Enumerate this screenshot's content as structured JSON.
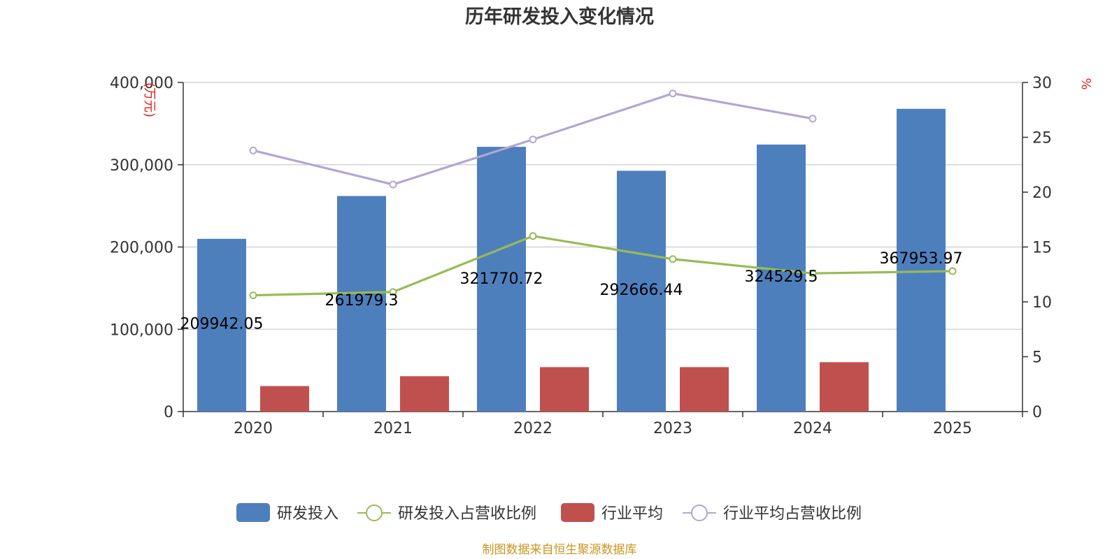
{
  "chart_data": {
    "type": "bar",
    "title": "历年研发投入变化情况",
    "categories": [
      "2020",
      "2021",
      "2022",
      "2023",
      "2024",
      "2025"
    ],
    "y_left": {
      "unit": "(万元)",
      "min": 0,
      "max": 400000,
      "ticks": [
        0,
        100000,
        200000,
        300000,
        400000
      ],
      "tick_labels": [
        "0",
        "100,000",
        "200,000",
        "300,000",
        "400,000"
      ]
    },
    "y_right": {
      "unit": "%",
      "min": 0,
      "max": 30,
      "ticks": [
        0,
        5,
        10,
        15,
        20,
        25,
        30
      ],
      "tick_labels": [
        "0",
        "5",
        "10",
        "15",
        "20",
        "25",
        "30"
      ]
    },
    "grid": true,
    "legend_position": "bottom-center",
    "series": [
      {
        "name": "研发投入",
        "type": "bar",
        "axis": "left",
        "color": "#4e7fbd",
        "values": [
          209942.05,
          261979.3,
          321770.72,
          292666.44,
          324529.5,
          367953.97
        ],
        "data_labels": [
          "209942.05",
          "261979.3",
          "321770.72",
          "292666.44",
          "324529.5",
          "367953.97"
        ]
      },
      {
        "name": "研发投入占营收比例",
        "type": "line",
        "axis": "right",
        "color": "#98bb56",
        "values": [
          10.6,
          10.9,
          16.0,
          13.9,
          12.6,
          12.8
        ]
      },
      {
        "name": "行业平均",
        "type": "bar",
        "axis": "left",
        "color": "#c0504d",
        "values": [
          31000,
          43000,
          54000,
          54000,
          60000,
          null
        ]
      },
      {
        "name": "行业平均占营收比例",
        "type": "line",
        "axis": "right",
        "color": "#b3a6d1",
        "values": [
          23.8,
          20.7,
          24.8,
          29.0,
          26.7,
          null
        ]
      }
    ],
    "source": "制图数据来自恒生聚源数据库"
  },
  "colors": {
    "unit": "#e0201b",
    "source": "#c9961f",
    "grid": "#cccccc",
    "axis": "#333333"
  }
}
